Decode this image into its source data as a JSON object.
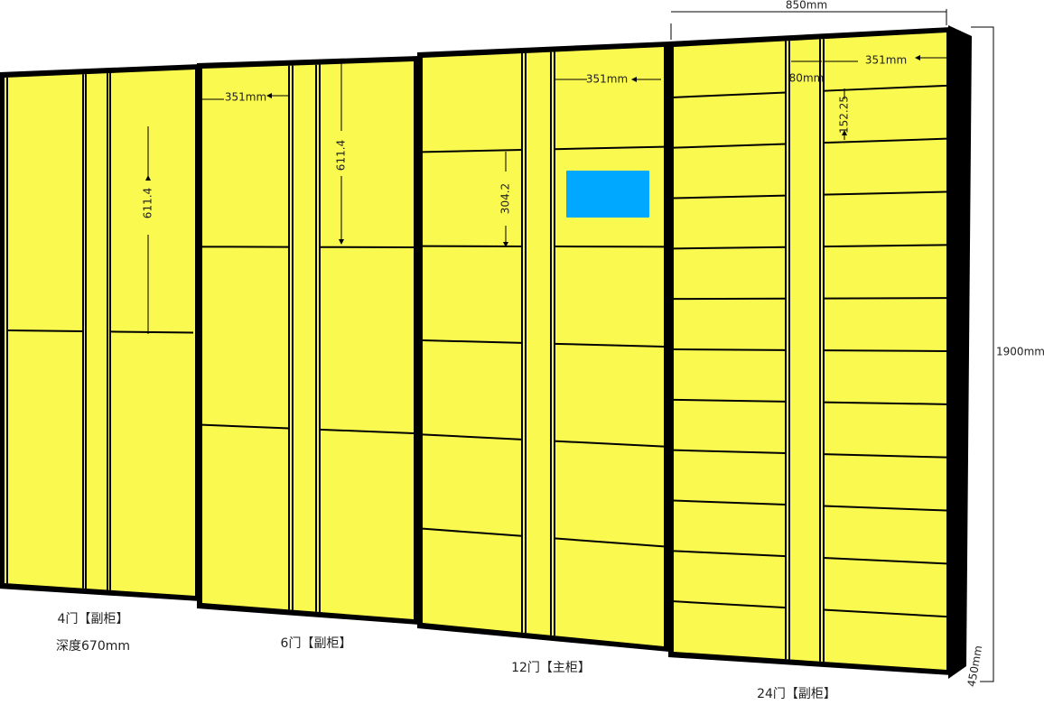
{
  "cabinets": [
    {
      "label": "4门【副柜】",
      "note": "深度670mm",
      "dims": [
        "611.4"
      ]
    },
    {
      "label": "6门【副柜】",
      "dims": [
        "351mm",
        "611.4"
      ]
    },
    {
      "label": "12门【主柜】",
      "dims": [
        "304.2",
        "351mm"
      ]
    },
    {
      "label": "24门【副柜】",
      "dims": [
        "850mm",
        "80mm",
        "351mm",
        "152.25"
      ]
    }
  ],
  "overall": {
    "height": "1900mm",
    "depth": "450mm"
  }
}
